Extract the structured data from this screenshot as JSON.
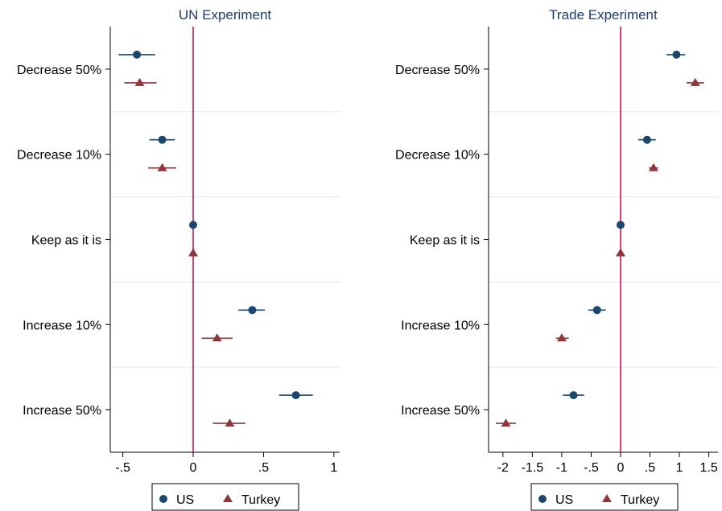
{
  "chart_data": [
    {
      "type": "scatter",
      "title": "UN Experiment",
      "xlabel": "",
      "ylabel": "",
      "categories": [
        "Decrease 50%",
        "Decrease 10%",
        "Keep as it is",
        "Increase 10%",
        "Increase 50%"
      ],
      "xlim": [
        -0.55,
        1.08
      ],
      "xticks": [
        -0.5,
        0,
        0.5,
        1
      ],
      "xtick_labels": [
        "-.5",
        "0",
        ".5",
        "1"
      ],
      "reference_line": 0,
      "series": [
        {
          "name": "US",
          "marker": "circle",
          "color": "#1a476f",
          "values": [
            -0.4,
            -0.22,
            0,
            0.42,
            0.73
          ],
          "ci": [
            [
              -0.53,
              -0.27
            ],
            [
              -0.31,
              -0.13
            ],
            [
              0,
              0
            ],
            [
              0.32,
              0.51
            ],
            [
              0.61,
              0.85
            ]
          ]
        },
        {
          "name": "Turkey",
          "marker": "triangle",
          "color": "#90353b",
          "values": [
            -0.38,
            -0.22,
            0,
            0.17,
            0.26
          ],
          "ci": [
            [
              -0.49,
              -0.26
            ],
            [
              -0.32,
              -0.12
            ],
            [
              0,
              0
            ],
            [
              0.06,
              0.28
            ],
            [
              0.14,
              0.37
            ]
          ]
        }
      ],
      "legend_position": "bottom"
    },
    {
      "type": "scatter",
      "title": "Trade Experiment",
      "xlabel": "",
      "ylabel": "",
      "categories": [
        "Decrease 50%",
        "Decrease 10%",
        "Keep as it is",
        "Increase 10%",
        "Increase 50%"
      ],
      "xlim": [
        -2.2,
        1.7
      ],
      "xticks": [
        -2,
        -1.5,
        -1,
        -0.5,
        0,
        0.5,
        1,
        1.5
      ],
      "xtick_labels": [
        "-2",
        "-1.5",
        "-1",
        "-.5",
        "0",
        ".5",
        "1",
        "1.5"
      ],
      "reference_line": 0,
      "series": [
        {
          "name": "US",
          "marker": "circle",
          "color": "#1a476f",
          "values": [
            0.95,
            0.45,
            0,
            -0.4,
            -0.8
          ],
          "ci": [
            [
              0.78,
              1.1
            ],
            [
              0.3,
              0.6
            ],
            [
              0,
              0
            ],
            [
              -0.55,
              -0.25
            ],
            [
              -0.98,
              -0.62
            ]
          ]
        },
        {
          "name": "Turkey",
          "marker": "triangle",
          "color": "#90353b",
          "values": [
            1.27,
            0.56,
            0,
            -1.0,
            -1.95
          ],
          "ci": [
            [
              1.12,
              1.42
            ],
            [
              0.48,
              0.64
            ],
            [
              0,
              0
            ],
            [
              -1.1,
              -0.88
            ],
            [
              -2.12,
              -1.78
            ]
          ]
        }
      ],
      "legend_position": "bottom"
    }
  ],
  "colors": {
    "reference_line": "#c4155d",
    "grid": "#e6ecef",
    "axis": "#000000"
  }
}
